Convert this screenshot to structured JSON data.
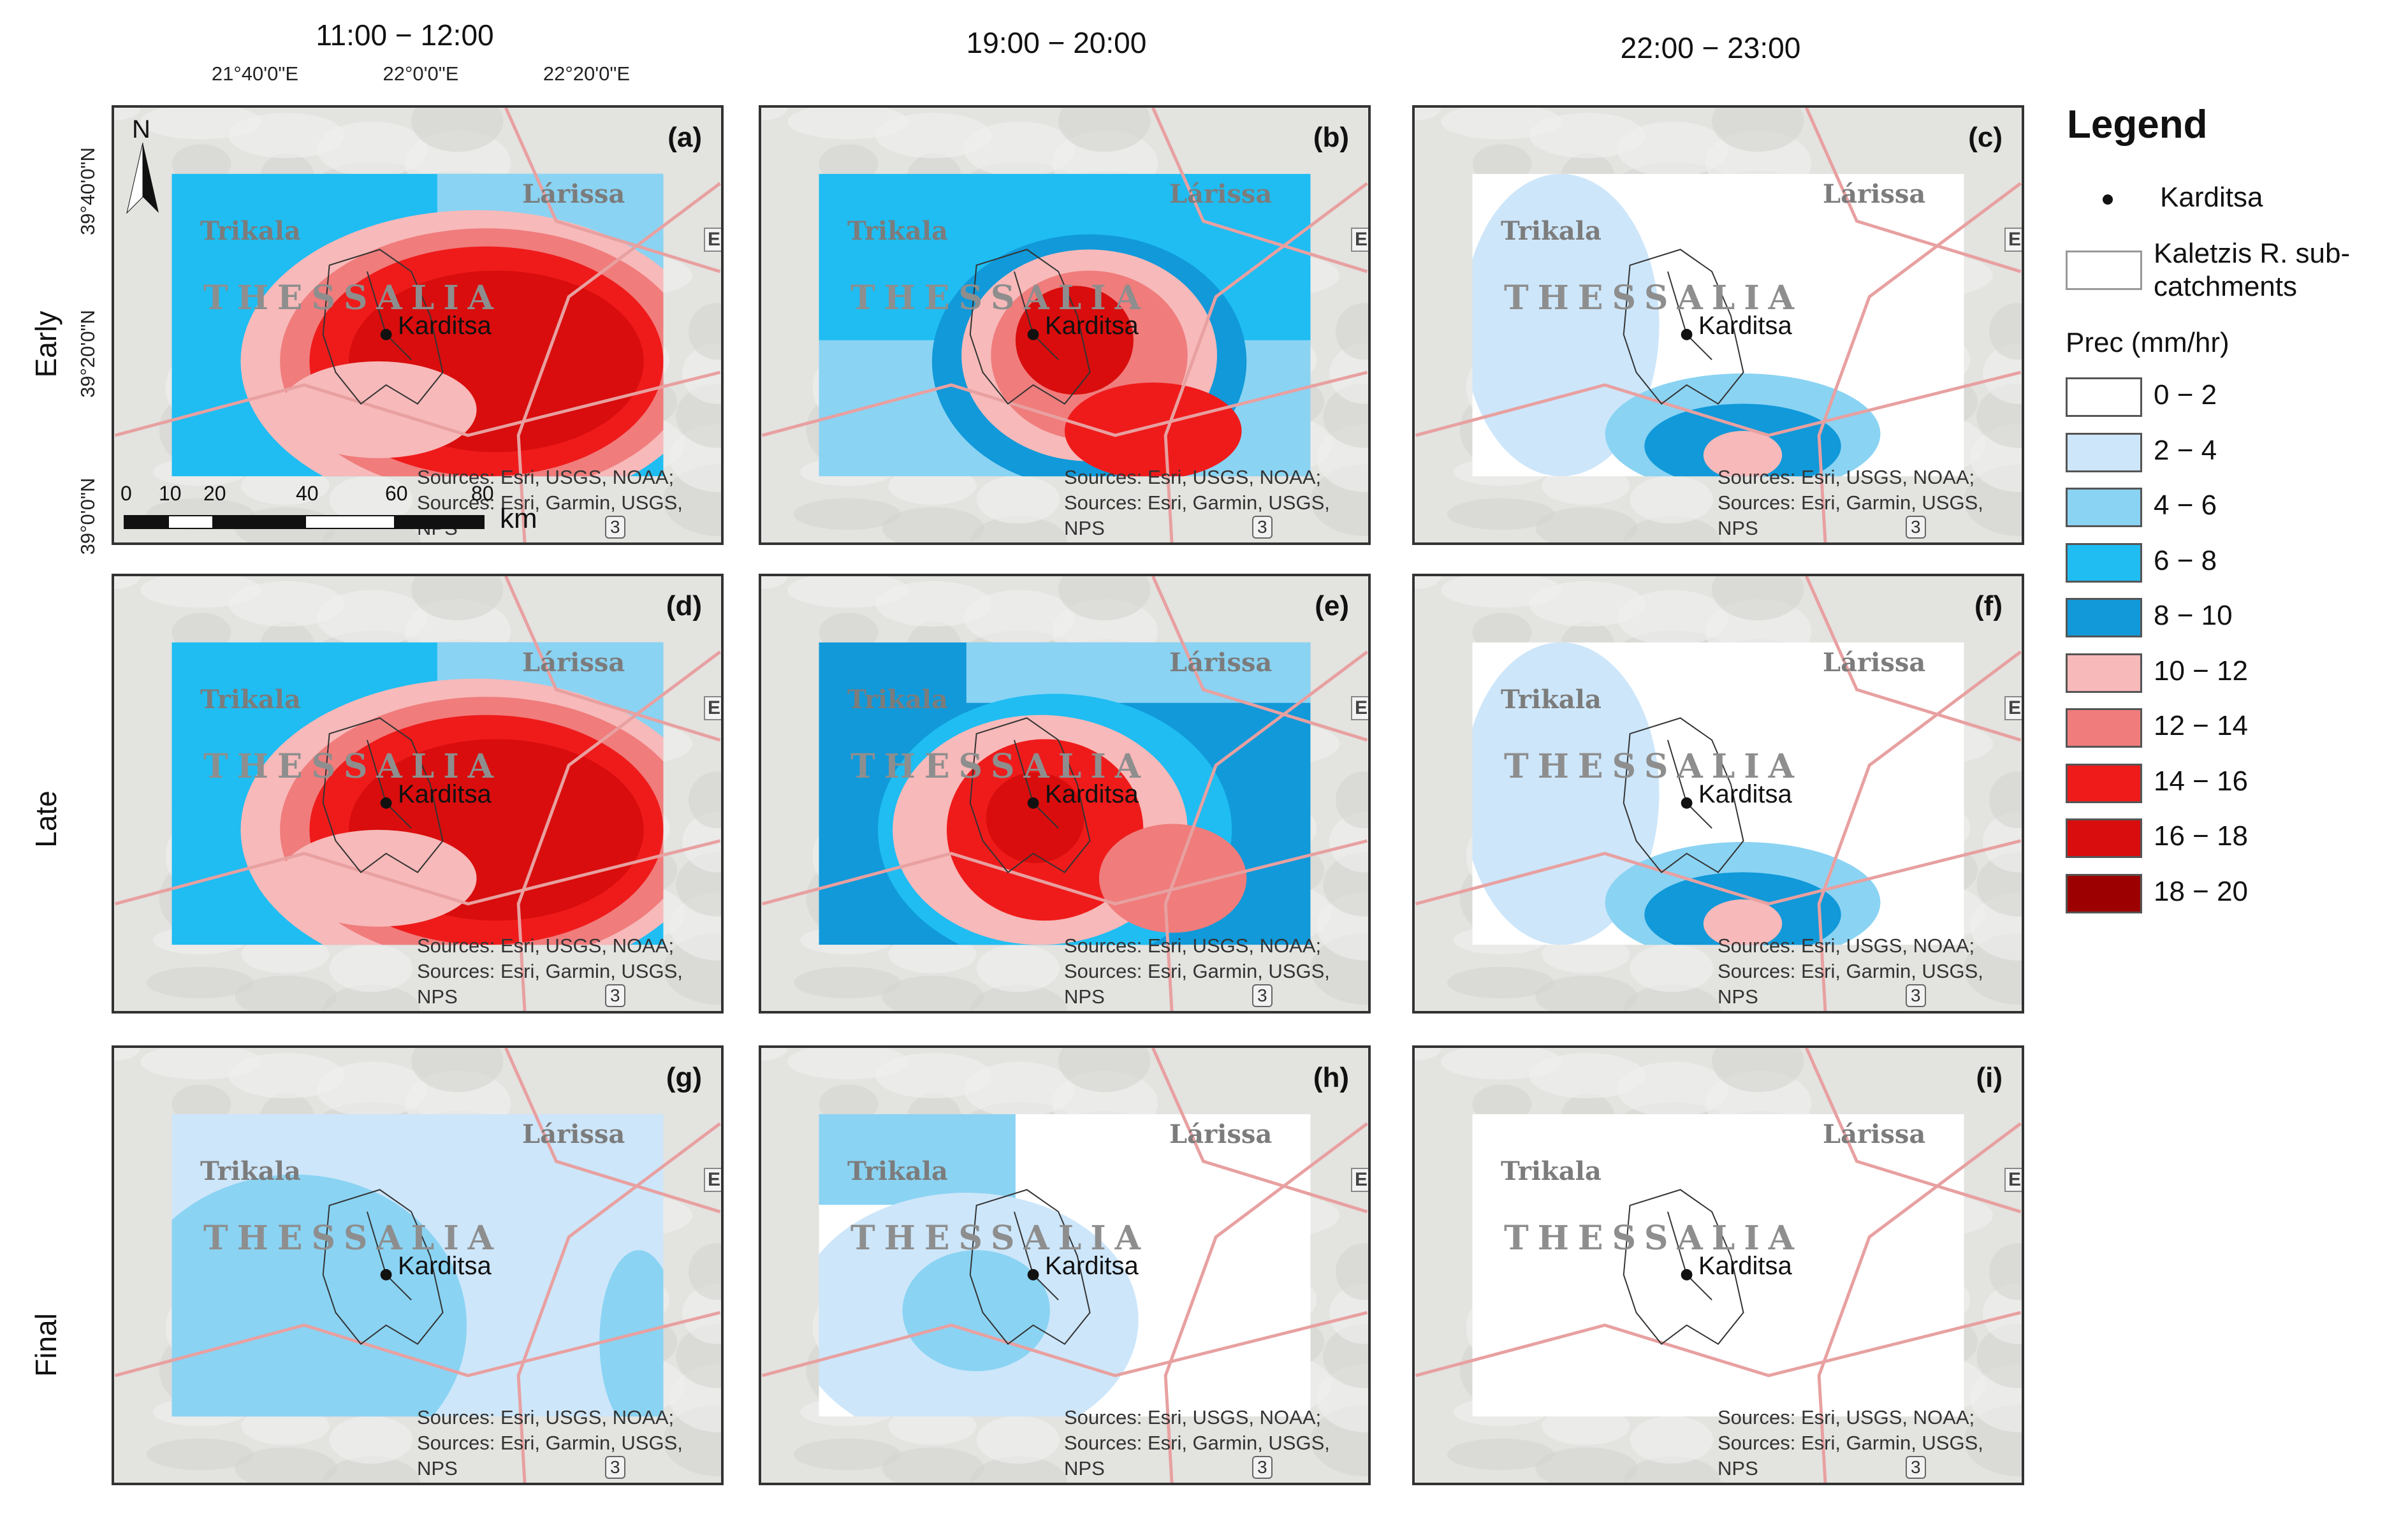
{
  "time_windows": [
    "11:00 − 12:00",
    "19:00 − 20:00",
    "22:00 − 23:00"
  ],
  "run_labels": [
    "Early",
    "Late",
    "Final"
  ],
  "panel_letters": [
    "(a)",
    "(b)",
    "(c)",
    "(d)",
    "(e)",
    "(f)",
    "(g)",
    "(h)",
    "(i)"
  ],
  "map_labels": {
    "larissa": "Lárissa",
    "trikala": "Trikala",
    "thessalia": "THESSALIA",
    "karditsa": "Karditsa",
    "edge_marker": "E",
    "route_shield": "3"
  },
  "credits": [
    "Sources: Esri, USGS, NOAA;",
    "Sources: Esri, Garmin, USGS,",
    "NPS"
  ],
  "graticule": {
    "longitudes": [
      "21°40'0\"E",
      "22°0'0\"E",
      "22°20'0\"E"
    ],
    "latitudes": [
      "39°40'0\"N",
      "39°20'0\"N",
      "39°0'0\"N"
    ]
  },
  "north_arrow": "N",
  "scale_bar": {
    "ticks": [
      "0",
      "10",
      "20",
      "40",
      "60",
      "80"
    ],
    "unit": "km"
  },
  "legend": {
    "title": "Legend",
    "point_label": "Karditsa",
    "catchment_label_1": "Kaletzis R. sub-",
    "catchment_label_2": "catchments",
    "prec_title": "Prec (mm/hr)",
    "classes": [
      {
        "label": "0 − 2",
        "color": "#ffffff"
      },
      {
        "label": "2 − 4",
        "color": "#cde6fa"
      },
      {
        "label": "4 − 6",
        "color": "#8ad3f3"
      },
      {
        "label": "6 − 8",
        "color": "#1fbdf2"
      },
      {
        "label": "8 − 10",
        "color": "#1199d9"
      },
      {
        "label": "10 − 12",
        "color": "#f7b9b9"
      },
      {
        "label": "12 − 14",
        "color": "#f07c7c"
      },
      {
        "label": "14 − 16",
        "color": "#ef1b1b"
      },
      {
        "label": "16 − 18",
        "color": "#d90d0d"
      },
      {
        "label": "18 − 20",
        "color": "#9c0000"
      }
    ]
  }
}
